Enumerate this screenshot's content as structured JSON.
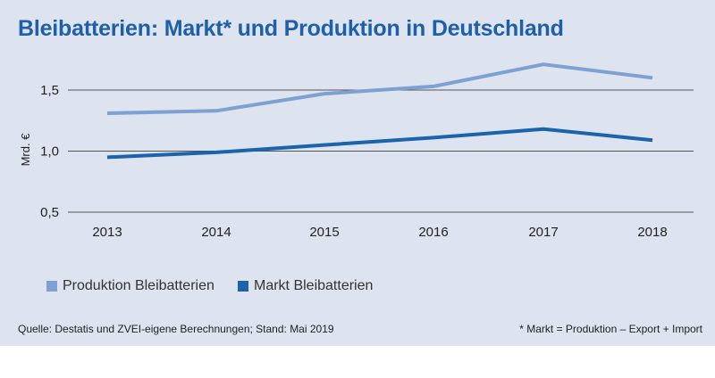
{
  "colors": {
    "panel_bg": "#dde3ef",
    "title": "#1d5fa8",
    "produktion": "#7ca1d2",
    "markt": "#1b63ab",
    "grid": "#555555"
  },
  "chart_data": {
    "type": "line",
    "title": "Bleibatterien: Markt* und Produktion in Deutschland",
    "ylabel": "Mrd. €",
    "xlabel": "",
    "x": [
      "2013",
      "2014",
      "2015",
      "2016",
      "2017",
      "2018"
    ],
    "ylim": [
      0.5,
      1.5
    ],
    "yticks": [
      0.5,
      1.0,
      1.5
    ],
    "ytick_labels": [
      "0,5",
      "1,0",
      "1,5"
    ],
    "grid": "horizontal",
    "legend_position": "bottom-left",
    "series": [
      {
        "name": "Produktion Bleibatterien",
        "color": "#7ca1d2",
        "values": [
          1.31,
          1.33,
          1.47,
          1.53,
          1.71,
          1.6
        ]
      },
      {
        "name": "Markt Bleibatterien",
        "color": "#1b63ab",
        "values": [
          0.95,
          0.99,
          1.05,
          1.11,
          1.18,
          1.09
        ]
      }
    ]
  },
  "source": "Quelle: Destatis und ZVEI-eigene Berechnungen; Stand: Mai 2019",
  "footnote": "* Markt = Produktion – Export + Import"
}
